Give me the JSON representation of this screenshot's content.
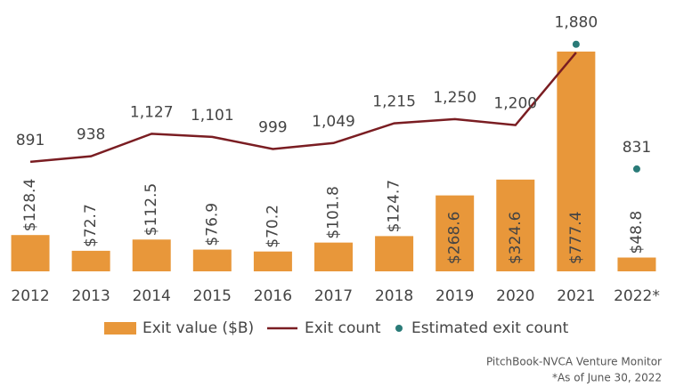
{
  "chart_data": {
    "type": "combo",
    "categories": [
      "2012",
      "2013",
      "2014",
      "2015",
      "2016",
      "2017",
      "2018",
      "2019",
      "2020",
      "2021",
      "2022*"
    ],
    "ylim": [
      0,
      900
    ],
    "y2lim": [
      -30,
      2110
    ],
    "grid": false,
    "series": [
      {
        "name": "Exit value ($B)",
        "type": "bar",
        "color": "#e8973a",
        "values": [
          128.4,
          72.7,
          112.5,
          76.9,
          70.2,
          101.8,
          124.7,
          268.6,
          324.6,
          777.4,
          48.8
        ],
        "value_labels": [
          "$128.4",
          "$72.7",
          "$112.5",
          "$76.9",
          "$70.2",
          "$101.8",
          "$124.7",
          "$268.6",
          "$324.6",
          "$777.4",
          "$48.8"
        ]
      },
      {
        "name": "Exit count",
        "type": "line",
        "axis": "y2",
        "color": "#7a1d22",
        "values": [
          891,
          938,
          1127,
          1101,
          999,
          1049,
          1215,
          1250,
          1200,
          1810,
          null
        ],
        "value_labels": [
          "891",
          "938",
          "1,127",
          "1,101",
          "999",
          "1,049",
          "1,215",
          "1,250",
          "1,200",
          null,
          null
        ]
      },
      {
        "name": "Estimated exit count",
        "type": "scatter",
        "axis": "y2",
        "color": "#2a7b78",
        "values": [
          null,
          null,
          null,
          null,
          null,
          null,
          null,
          null,
          null,
          1880,
          831
        ],
        "value_labels": [
          null,
          null,
          null,
          null,
          null,
          null,
          null,
          null,
          null,
          "1,880",
          "831"
        ]
      }
    ],
    "legend": "bottom",
    "source": "PitchBook-NVCA Venture Monitor",
    "note": "*As of June 30, 2022"
  }
}
